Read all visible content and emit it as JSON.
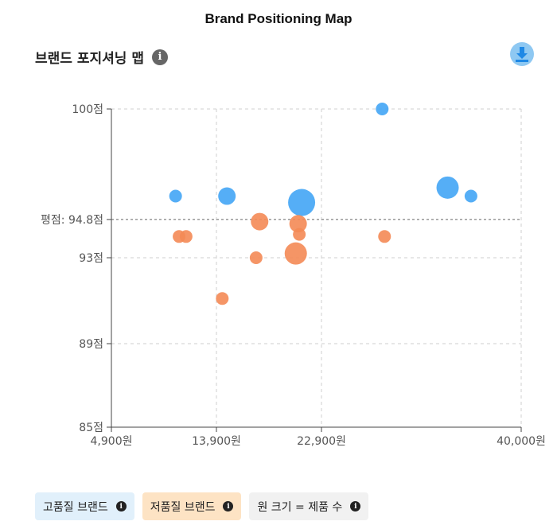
{
  "header": {
    "title": "Brand Positioning Map"
  },
  "card": {
    "title": "브랜드 포지셔닝 맵",
    "info_icon": "info-icon",
    "download_icon": "download-icon"
  },
  "colors": {
    "high": "#42a5f5",
    "low": "#f48a55",
    "accent": "#1e88e5"
  },
  "chart_data": {
    "type": "scatter",
    "x_ticks": [
      {
        "value": 4900,
        "label": "4,900원"
      },
      {
        "value": 13900,
        "label": "13,900원"
      },
      {
        "value": 22900,
        "label": "22,900원"
      },
      {
        "value": 40000,
        "label": "40,000원"
      }
    ],
    "y_ticks": [
      {
        "value": 85,
        "label": "85점"
      },
      {
        "value": 89,
        "label": "89점"
      },
      {
        "value": 93,
        "label": "93점"
      },
      {
        "value": 100,
        "label": "100점"
      }
    ],
    "xlim": [
      4900,
      40000
    ],
    "ylim": [
      85,
      100
    ],
    "average_line": {
      "value": 94.8,
      "label": "평점: 94.8점"
    },
    "grid": true,
    "series": [
      {
        "name": "고품질 브랜드",
        "color": "#42a5f5",
        "points": [
          {
            "x": 10400,
            "y": 95.9,
            "size": 1
          },
          {
            "x": 14800,
            "y": 95.9,
            "size": 2
          },
          {
            "x": 21200,
            "y": 95.6,
            "size": 4
          },
          {
            "x": 28100,
            "y": 100,
            "size": 1
          },
          {
            "x": 33700,
            "y": 96.3,
            "size": 3
          },
          {
            "x": 35700,
            "y": 95.9,
            "size": 1
          }
        ]
      },
      {
        "name": "저품질 브랜드",
        "color": "#f48a55",
        "points": [
          {
            "x": 10700,
            "y": 94.0,
            "size": 1
          },
          {
            "x": 11300,
            "y": 94.0,
            "size": 1
          },
          {
            "x": 14400,
            "y": 91.1,
            "size": 1
          },
          {
            "x": 17300,
            "y": 93.0,
            "size": 1
          },
          {
            "x": 17600,
            "y": 94.7,
            "size": 2
          },
          {
            "x": 20700,
            "y": 93.2,
            "size": 3
          },
          {
            "x": 20900,
            "y": 94.6,
            "size": 2
          },
          {
            "x": 21000,
            "y": 94.1,
            "size": 1
          },
          {
            "x": 28300,
            "y": 94.0,
            "size": 1
          }
        ]
      }
    ]
  },
  "legend": {
    "high": "고품질 브랜드",
    "low": "저품질 브랜드",
    "size": "원 크기 = 제품 수"
  }
}
